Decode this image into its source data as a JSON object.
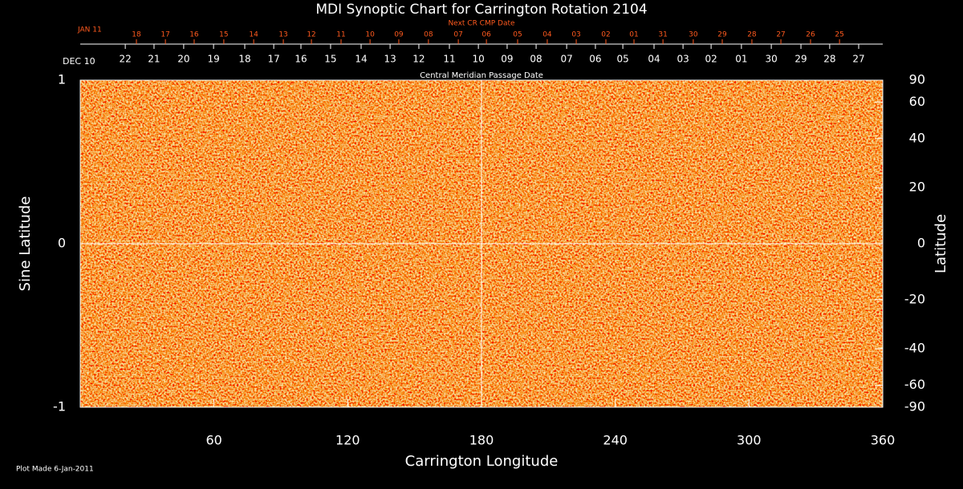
{
  "chart_data": {
    "type": "synoptic-map",
    "title": "MDI Synoptic Chart for Carrington Rotation 2104",
    "xlabel": "Carrington Longitude",
    "ylabel": "Sine Latitude",
    "y2label": "Latitude",
    "footer": "Plot Made  6-Jan-2011",
    "xlim": [
      0,
      360
    ],
    "xticks": [
      60,
      120,
      180,
      240,
      300,
      360
    ],
    "ylim": [
      -1,
      1
    ],
    "yticks": [
      -1,
      0,
      1
    ],
    "y2scale": "sine",
    "y2lim": [
      -90,
      90
    ],
    "y2ticks": [
      90,
      60,
      40,
      20,
      0,
      -20,
      -40,
      -60,
      -90
    ],
    "center_lines": true,
    "next_cmp": {
      "label": "Next CR CMP Date",
      "start": "JAN 11",
      "color": "#ff5a1e",
      "ticks": [
        {
          "value": 25.2,
          "label": "18"
        },
        {
          "value": 38.2,
          "label": "17"
        },
        {
          "value": 51.1,
          "label": "16"
        },
        {
          "value": 64.4,
          "label": "15"
        },
        {
          "value": 77.8,
          "label": "14"
        },
        {
          "value": 91.1,
          "label": "13"
        },
        {
          "value": 103.7,
          "label": "12"
        },
        {
          "value": 117.0,
          "label": "11"
        },
        {
          "value": 130.0,
          "label": "10"
        },
        {
          "value": 142.9,
          "label": "09"
        },
        {
          "value": 156.2,
          "label": "08"
        },
        {
          "value": 169.6,
          "label": "07"
        },
        {
          "value": 182.2,
          "label": "06"
        },
        {
          "value": 196.2,
          "label": "05"
        },
        {
          "value": 209.5,
          "label": "04"
        },
        {
          "value": 222.5,
          "label": "03"
        },
        {
          "value": 235.8,
          "label": "02"
        },
        {
          "value": 248.4,
          "label": "01"
        },
        {
          "value": 261.4,
          "label": "31"
        },
        {
          "value": 275.0,
          "label": "30"
        },
        {
          "value": 288.0,
          "label": "29"
        },
        {
          "value": 301.3,
          "label": "28"
        },
        {
          "value": 314.3,
          "label": "27"
        },
        {
          "value": 327.6,
          "label": "26"
        },
        {
          "value": 340.6,
          "label": "25"
        }
      ]
    },
    "cmp": {
      "label": "Central Meridian Passage Date",
      "start": "DEC 10",
      "ticks": [
        {
          "value": 20.2,
          "label": "22"
        },
        {
          "value": 33.1,
          "label": "21"
        },
        {
          "value": 46.4,
          "label": "20"
        },
        {
          "value": 59.8,
          "label": "19"
        },
        {
          "value": 73.8,
          "label": "18"
        },
        {
          "value": 86.8,
          "label": "17"
        },
        {
          "value": 99.0,
          "label": "16"
        },
        {
          "value": 112.3,
          "label": "15"
        },
        {
          "value": 126.0,
          "label": "14"
        },
        {
          "value": 139.0,
          "label": "13"
        },
        {
          "value": 151.9,
          "label": "12"
        },
        {
          "value": 165.6,
          "label": "11"
        },
        {
          "value": 178.6,
          "label": "10"
        },
        {
          "value": 191.5,
          "label": "09"
        },
        {
          "value": 204.5,
          "label": "08"
        },
        {
          "value": 218.2,
          "label": "07"
        },
        {
          "value": 231.1,
          "label": "06"
        },
        {
          "value": 243.4,
          "label": "05"
        },
        {
          "value": 257.4,
          "label": "04"
        },
        {
          "value": 270.4,
          "label": "03"
        },
        {
          "value": 283.0,
          "label": "02"
        },
        {
          "value": 296.6,
          "label": "01"
        },
        {
          "value": 310.0,
          "label": "30"
        },
        {
          "value": 323.3,
          "label": "29"
        },
        {
          "value": 336.2,
          "label": "28"
        },
        {
          "value": 349.2,
          "label": "27"
        }
      ]
    }
  }
}
